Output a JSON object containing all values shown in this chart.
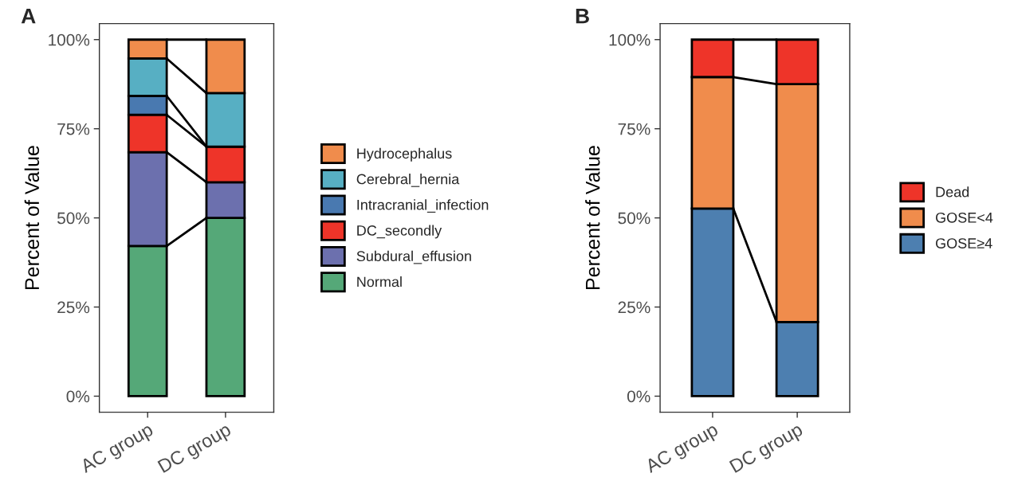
{
  "chart_data": [
    {
      "type": "bar",
      "title": "A",
      "ylabel": "Percent of Value",
      "categories": [
        "AC group",
        "DC group"
      ],
      "stacked": true,
      "legend": "right",
      "grid": false,
      "ylim": [
        -4.5,
        104.5
      ],
      "yticks": [
        {
          "value": 0,
          "label": "0%"
        },
        {
          "value": 25,
          "label": "25%"
        },
        {
          "value": 50,
          "label": "50%"
        },
        {
          "value": 75,
          "label": "75%"
        },
        {
          "value": 100,
          "label": "100%"
        }
      ],
      "series": [
        {
          "name": "Normal",
          "color": "#55a878",
          "values": [
            42.1,
            50
          ]
        },
        {
          "name": "Subdural_effusion",
          "color": "#6c70ae",
          "values": [
            26.3,
            10
          ]
        },
        {
          "name": "DC_secondly",
          "color": "#ee3429",
          "values": [
            10.5,
            10
          ]
        },
        {
          "name": "Intracranial_infection",
          "color": "#4979b0",
          "values": [
            5.3,
            0
          ]
        },
        {
          "name": "Cerebral_hernia",
          "color": "#57afc3",
          "values": [
            10.5,
            15
          ]
        },
        {
          "name": "Hydrocephalus",
          "color": "#f08c4c",
          "values": [
            5.3,
            15
          ]
        }
      ]
    },
    {
      "type": "bar",
      "title": "B",
      "ylabel": "Percent of Value",
      "categories": [
        "AC group",
        "DC group"
      ],
      "stacked": true,
      "legend": "right",
      "grid": false,
      "ylim": [
        -4.5,
        104.5
      ],
      "yticks": [
        {
          "value": 0,
          "label": "0%"
        },
        {
          "value": 25,
          "label": "25%"
        },
        {
          "value": 50,
          "label": "50%"
        },
        {
          "value": 75,
          "label": "75%"
        },
        {
          "value": 100,
          "label": "100%"
        }
      ],
      "series": [
        {
          "name": "GOSE≥4",
          "color": "#4d7fb0",
          "values": [
            52.6,
            20.8
          ]
        },
        {
          "name": "GOSE<4",
          "color": "#f08c4c",
          "values": [
            36.9,
            66.7
          ]
        },
        {
          "name": "Dead",
          "color": "#ee3429",
          "values": [
            10.5,
            12.5
          ]
        }
      ]
    }
  ]
}
